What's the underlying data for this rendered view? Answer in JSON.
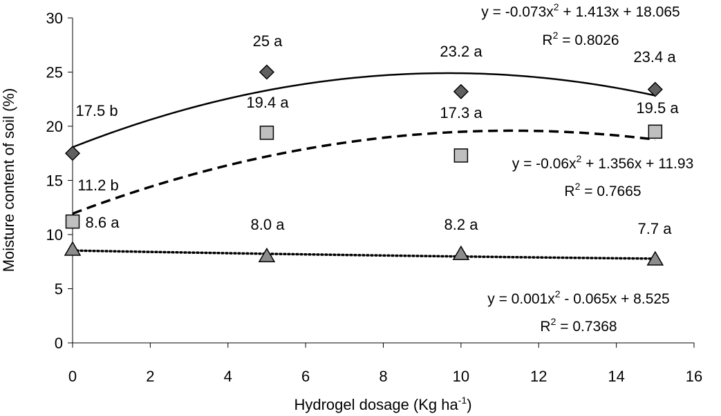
{
  "chart_data": {
    "type": "scatter",
    "title": "",
    "xlabel": "Hydrogel dosage (Kg ha",
    "xlabel_superscript": "-1",
    "xlabel_suffix": ")",
    "ylabel": "Moisture content of soil (%)",
    "xlim": [
      0,
      16
    ],
    "ylim": [
      0,
      30
    ],
    "x_ticks": [
      "0",
      "2",
      "4",
      "6",
      "8",
      "10",
      "12",
      "14",
      "16"
    ],
    "y_ticks": [
      "0",
      "5",
      "10",
      "15",
      "20",
      "25",
      "30"
    ],
    "x": [
      0,
      5,
      10,
      15
    ],
    "series": [
      {
        "name": "diamond-series",
        "marker": "diamond",
        "line": "solid",
        "color": "#606060",
        "values": [
          17.5,
          25,
          23.2,
          23.4
        ],
        "point_labels": [
          "17.5 b",
          "25 a",
          "23.2 a",
          "23.4 a"
        ],
        "fit": {
          "a": -0.073,
          "b": 1.413,
          "c": 18.065
        },
        "equation_pre": "y = -0.073x",
        "equation_post": " + 1.413x + 18.065",
        "r2": "R",
        "r2_value": " = 0.8026"
      },
      {
        "name": "square-series",
        "marker": "square",
        "line": "dashed",
        "color": "#bfbfbf",
        "values": [
          11.2,
          19.4,
          17.3,
          19.5
        ],
        "point_labels": [
          "11.2 b",
          "19.4 a",
          "17.3 a",
          "19.5 a"
        ],
        "fit": {
          "a": -0.06,
          "b": 1.356,
          "c": 11.93
        },
        "equation_pre": "y = -0.06x",
        "equation_post": " + 1.356x + 11.93",
        "r2": "R",
        "r2_value": " = 0.7665"
      },
      {
        "name": "triangle-series",
        "marker": "triangle",
        "line": "dotted",
        "color": "#8c8c8c",
        "values": [
          8.6,
          8.0,
          8.2,
          7.7
        ],
        "point_labels": [
          "8.6 a",
          "8.0 a",
          "8.2 a",
          "7.7 a"
        ],
        "fit": {
          "a": 0.001,
          "b": -0.065,
          "c": 8.525
        },
        "equation_pre": "y = 0.001x",
        "equation_post": " - 0.065x + 8.525",
        "r2": "R",
        "r2_value": " = 0.7368"
      }
    ],
    "superscript_two": "2"
  }
}
